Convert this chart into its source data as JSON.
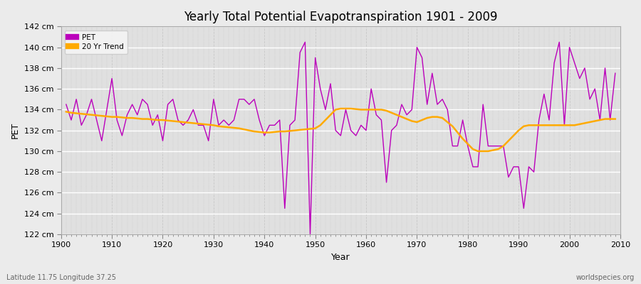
{
  "title": "Yearly Total Potential Evapotranspiration 1901 - 2009",
  "xlabel": "Year",
  "ylabel": "PET",
  "subtitle_left": "Latitude 11.75 Longitude 37.25",
  "subtitle_right": "worldspecies.org",
  "pet_color": "#bb00bb",
  "trend_color": "#ffaa00",
  "fig_bg_color": "#e8e8e8",
  "plot_bg_color": "#dcdcdc",
  "ylim": [
    122,
    142
  ],
  "xlim": [
    1901,
    2009
  ],
  "years": [
    1901,
    1902,
    1903,
    1904,
    1905,
    1906,
    1907,
    1908,
    1909,
    1910,
    1911,
    1912,
    1913,
    1914,
    1915,
    1916,
    1917,
    1918,
    1919,
    1920,
    1921,
    1922,
    1923,
    1924,
    1925,
    1926,
    1927,
    1928,
    1929,
    1930,
    1931,
    1932,
    1933,
    1934,
    1935,
    1936,
    1937,
    1938,
    1939,
    1940,
    1941,
    1942,
    1943,
    1944,
    1945,
    1946,
    1947,
    1948,
    1949,
    1950,
    1951,
    1952,
    1953,
    1954,
    1955,
    1956,
    1957,
    1958,
    1959,
    1960,
    1961,
    1962,
    1963,
    1964,
    1965,
    1966,
    1967,
    1968,
    1969,
    1970,
    1971,
    1972,
    1973,
    1974,
    1975,
    1976,
    1977,
    1978,
    1979,
    1980,
    1981,
    1982,
    1983,
    1984,
    1985,
    1986,
    1987,
    1988,
    1989,
    1990,
    1991,
    1992,
    1993,
    1994,
    1995,
    1996,
    1997,
    1998,
    1999,
    2000,
    2001,
    2002,
    2003,
    2004,
    2005,
    2006,
    2007,
    2008,
    2009
  ],
  "pet": [
    134.5,
    133.0,
    135.0,
    132.5,
    133.5,
    135.0,
    133.0,
    131.0,
    134.0,
    137.0,
    133.0,
    131.5,
    133.5,
    134.5,
    133.5,
    135.0,
    134.5,
    132.5,
    133.5,
    131.0,
    134.5,
    135.0,
    133.0,
    132.5,
    133.0,
    134.0,
    132.5,
    132.5,
    131.0,
    135.0,
    132.5,
    133.0,
    132.5,
    133.0,
    135.0,
    135.0,
    134.5,
    135.0,
    133.0,
    131.5,
    132.5,
    132.5,
    133.0,
    124.5,
    132.5,
    133.0,
    139.5,
    140.5,
    122.0,
    139.0,
    136.0,
    134.0,
    136.5,
    132.0,
    131.5,
    134.0,
    132.0,
    131.5,
    132.5,
    132.0,
    136.0,
    133.5,
    133.0,
    127.0,
    132.0,
    132.5,
    134.5,
    133.5,
    134.0,
    140.0,
    139.0,
    134.5,
    137.5,
    134.5,
    135.0,
    134.0,
    130.5,
    130.5,
    133.0,
    130.5,
    128.5,
    128.5,
    134.5,
    130.5,
    130.5,
    130.5,
    130.5,
    127.5,
    128.5,
    128.5,
    124.5,
    128.5,
    128.0,
    133.0,
    135.5,
    133.0,
    138.5,
    140.5,
    132.5,
    140.0,
    138.5,
    137.0,
    138.0,
    135.0,
    136.0,
    133.0,
    138.0,
    133.0,
    137.5
  ],
  "trend": [
    133.8,
    133.7,
    133.65,
    133.6,
    133.55,
    133.5,
    133.45,
    133.4,
    133.35,
    133.3,
    133.3,
    133.25,
    133.2,
    133.2,
    133.15,
    133.1,
    133.1,
    133.05,
    133.0,
    133.0,
    132.95,
    132.9,
    132.85,
    132.8,
    132.75,
    132.7,
    132.65,
    132.6,
    132.55,
    132.5,
    132.4,
    132.35,
    132.3,
    132.25,
    132.2,
    132.1,
    132.0,
    131.9,
    131.85,
    131.8,
    131.8,
    131.85,
    131.9,
    131.9,
    131.95,
    132.0,
    132.05,
    132.1,
    132.15,
    132.2,
    132.5,
    133.0,
    133.5,
    134.0,
    134.1,
    134.1,
    134.1,
    134.05,
    134.0,
    134.0,
    134.0,
    134.0,
    134.0,
    133.9,
    133.7,
    133.5,
    133.3,
    133.1,
    132.9,
    132.8,
    133.0,
    133.2,
    133.3,
    133.3,
    133.2,
    132.8,
    132.4,
    131.8,
    131.2,
    130.7,
    130.2,
    130.0,
    130.0,
    130.0,
    130.1,
    130.2,
    130.5,
    131.0,
    131.5,
    132.0,
    132.4,
    132.5,
    132.5,
    132.5,
    132.5,
    132.5,
    132.5,
    132.5,
    132.5,
    132.5,
    132.5,
    132.6,
    132.7,
    132.8,
    132.9,
    133.0,
    133.1,
    133.1,
    133.1
  ]
}
